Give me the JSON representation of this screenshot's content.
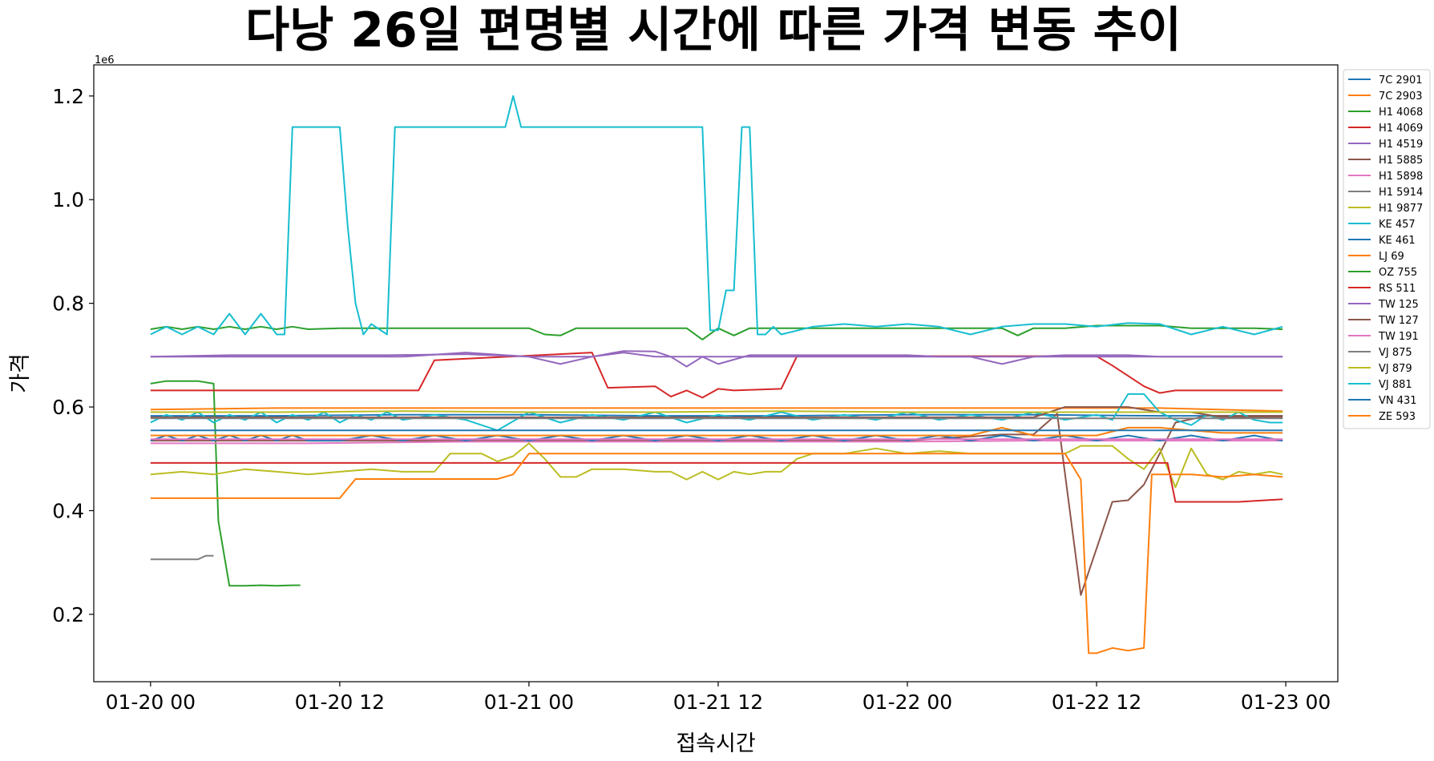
{
  "chart_data": {
    "type": "line",
    "title": "다낭 26일 편명별 시간에 따른 가격 변동 추이",
    "xlabel": "접속시간",
    "ylabel": "가격",
    "y_offset_label": "1e6",
    "x_unit": "hours since 01-20 00",
    "x_ticks": [
      {
        "value": 0,
        "label": "01-20 00"
      },
      {
        "value": 12,
        "label": "01-20 12"
      },
      {
        "value": 24,
        "label": "01-21 00"
      },
      {
        "value": 36,
        "label": "01-21 12"
      },
      {
        "value": 48,
        "label": "01-22 00"
      },
      {
        "value": 60,
        "label": "01-22 12"
      },
      {
        "value": 72,
        "label": "01-23 00"
      }
    ],
    "y_ticks": [
      {
        "value": 0.2,
        "label": "0.2"
      },
      {
        "value": 0.4,
        "label": "0.4"
      },
      {
        "value": 0.6,
        "label": "0.6"
      },
      {
        "value": 0.8,
        "label": "0.8"
      },
      {
        "value": 1.0,
        "label": "1.0"
      },
      {
        "value": 1.2,
        "label": "1.2"
      }
    ],
    "xlim": [
      -3.6,
      75.3
    ],
    "ylim": [
      0.07,
      1.26
    ],
    "grid": false,
    "legend_position": "outside-right",
    "series": [
      {
        "name": "7C 2901",
        "color": "#1f77b4",
        "x": [
          0,
          8,
          16,
          24,
          32,
          40,
          48,
          56,
          64,
          71.8
        ],
        "y": [
          0.583,
          0.583,
          0.585,
          0.585,
          0.583,
          0.583,
          0.585,
          0.585,
          0.583,
          0.583
        ]
      },
      {
        "name": "7C 2903",
        "color": "#ff7f0e",
        "x": [
          0,
          8,
          16,
          24,
          32,
          40,
          48,
          56,
          64,
          71.8
        ],
        "y": [
          0.595,
          0.598,
          0.598,
          0.598,
          0.598,
          0.598,
          0.598,
          0.598,
          0.598,
          0.592
        ]
      },
      {
        "name": "H1 4068",
        "color": "#2ca02c",
        "x": [
          0,
          1,
          3,
          4,
          4.3,
          5,
          6,
          7,
          8,
          9,
          9.5
        ],
        "y": [
          0.645,
          0.65,
          0.65,
          0.645,
          0.38,
          0.255,
          0.255,
          0.256,
          0.255,
          0.256,
          0.256
        ]
      },
      {
        "name": "H1 4069",
        "color": "#d62728",
        "x": [
          0,
          5,
          10,
          15,
          17,
          18,
          28,
          29,
          32,
          33,
          34,
          35,
          36,
          37,
          40,
          41,
          60,
          61,
          62,
          63,
          64,
          65,
          66,
          67,
          71.8
        ],
        "y": [
          0.632,
          0.632,
          0.632,
          0.632,
          0.632,
          0.69,
          0.705,
          0.637,
          0.64,
          0.62,
          0.632,
          0.618,
          0.635,
          0.632,
          0.635,
          0.698,
          0.698,
          0.68,
          0.66,
          0.64,
          0.627,
          0.632,
          0.632,
          0.632,
          0.632
        ]
      },
      {
        "name": "H1 4519",
        "color": "#9467bd",
        "x": [
          0,
          5,
          10,
          15,
          20,
          24,
          26,
          28,
          30,
          32,
          33,
          34,
          35,
          36,
          38,
          40,
          44,
          48,
          50,
          52,
          54,
          56,
          58,
          60,
          62,
          64,
          66,
          68,
          71.8
        ],
        "y": [
          0.697,
          0.7,
          0.7,
          0.7,
          0.702,
          0.697,
          0.683,
          0.697,
          0.708,
          0.707,
          0.697,
          0.678,
          0.697,
          0.683,
          0.7,
          0.7,
          0.7,
          0.7,
          0.697,
          0.697,
          0.683,
          0.697,
          0.7,
          0.7,
          0.7,
          0.697,
          0.697,
          0.697,
          0.697
        ]
      },
      {
        "name": "H1 5885",
        "color": "#8c564b",
        "x": [
          0,
          10,
          20,
          30,
          40,
          48,
          54,
          56,
          57.5,
          59,
          61,
          62,
          63,
          65,
          67,
          69,
          71.8
        ],
        "y": [
          0.535,
          0.535,
          0.535,
          0.535,
          0.535,
          0.535,
          0.547,
          0.547,
          0.587,
          0.237,
          0.417,
          0.42,
          0.45,
          0.57,
          0.583,
          0.583,
          0.583
        ]
      },
      {
        "name": "H1 5898",
        "color": "#e377c2",
        "x": [
          0,
          10,
          20,
          30,
          40,
          48,
          56,
          64,
          71.8
        ],
        "y": [
          0.53,
          0.53,
          0.533,
          0.533,
          0.533,
          0.533,
          0.535,
          0.535,
          0.535
        ]
      },
      {
        "name": "H1 5914",
        "color": "#7f7f7f",
        "x": [
          0,
          3,
          3.5,
          4
        ],
        "y": [
          0.306,
          0.306,
          0.313,
          0.313
        ]
      },
      {
        "name": "H1 9877",
        "color": "#bcbd22",
        "x": [
          0,
          2,
          4,
          6,
          8,
          10,
          12,
          14,
          16,
          18,
          19,
          21,
          22,
          23,
          24,
          25,
          26,
          27,
          28,
          30,
          32,
          33,
          34,
          35,
          36,
          37,
          38,
          39,
          40,
          41,
          42,
          43,
          44,
          46,
          48,
          50,
          52,
          54,
          56,
          58,
          59,
          60,
          61,
          62,
          63,
          64,
          65,
          66,
          67,
          68,
          69,
          70,
          71,
          71.8
        ],
        "y": [
          0.47,
          0.475,
          0.47,
          0.48,
          0.475,
          0.47,
          0.475,
          0.48,
          0.475,
          0.475,
          0.51,
          0.51,
          0.495,
          0.505,
          0.53,
          0.5,
          0.465,
          0.465,
          0.48,
          0.48,
          0.475,
          0.475,
          0.46,
          0.475,
          0.46,
          0.475,
          0.47,
          0.475,
          0.475,
          0.5,
          0.51,
          0.51,
          0.51,
          0.52,
          0.51,
          0.515,
          0.51,
          0.51,
          0.51,
          0.51,
          0.525,
          0.525,
          0.525,
          0.5,
          0.48,
          0.52,
          0.445,
          0.52,
          0.47,
          0.46,
          0.475,
          0.47,
          0.475,
          0.47
        ]
      },
      {
        "name": "KE 457",
        "color": "#17becf",
        "x": [
          0,
          1,
          2,
          3,
          4,
          5,
          6,
          7,
          8,
          9,
          10,
          11,
          12,
          13,
          14,
          15,
          16,
          18,
          20,
          22,
          24,
          26,
          28,
          30,
          32,
          34,
          36,
          38,
          40,
          42,
          44,
          46,
          48,
          50,
          52,
          54,
          56,
          58,
          60,
          61,
          62,
          63,
          64,
          65,
          66,
          67,
          68,
          69,
          70,
          71,
          71.8
        ],
        "y": [
          0.57,
          0.585,
          0.575,
          0.59,
          0.57,
          0.585,
          0.575,
          0.59,
          0.57,
          0.585,
          0.575,
          0.59,
          0.57,
          0.585,
          0.575,
          0.59,
          0.575,
          0.585,
          0.575,
          0.555,
          0.59,
          0.57,
          0.585,
          0.575,
          0.59,
          0.57,
          0.585,
          0.575,
          0.59,
          0.575,
          0.585,
          0.575,
          0.59,
          0.575,
          0.585,
          0.575,
          0.59,
          0.575,
          0.585,
          0.575,
          0.625,
          0.625,
          0.59,
          0.575,
          0.565,
          0.585,
          0.575,
          0.59,
          0.575,
          0.57,
          0.57
        ]
      },
      {
        "name": "KE 461",
        "color": "#1f77b4",
        "x": [
          0,
          1,
          2,
          3,
          4,
          5,
          6,
          7,
          8,
          9,
          10,
          12,
          14,
          16,
          18,
          20,
          22,
          24,
          26,
          28,
          30,
          32,
          34,
          36,
          38,
          40,
          42,
          44,
          46,
          48,
          50,
          52,
          54,
          56,
          58,
          60,
          62,
          64,
          66,
          68,
          70,
          71.8
        ],
        "y": [
          0.535,
          0.545,
          0.535,
          0.545,
          0.535,
          0.545,
          0.535,
          0.545,
          0.535,
          0.545,
          0.535,
          0.535,
          0.545,
          0.535,
          0.545,
          0.535,
          0.545,
          0.535,
          0.545,
          0.535,
          0.545,
          0.535,
          0.545,
          0.535,
          0.545,
          0.535,
          0.545,
          0.535,
          0.545,
          0.535,
          0.545,
          0.535,
          0.545,
          0.535,
          0.545,
          0.535,
          0.545,
          0.535,
          0.545,
          0.535,
          0.545,
          0.535
        ]
      },
      {
        "name": "LJ 69",
        "color": "#ff7f0e",
        "x": [
          0,
          8,
          16,
          24,
          32,
          40,
          48,
          52,
          54,
          56,
          58,
          59,
          60,
          62,
          64,
          66,
          68,
          71.8
        ],
        "y": [
          0.545,
          0.545,
          0.545,
          0.545,
          0.545,
          0.545,
          0.545,
          0.545,
          0.56,
          0.545,
          0.545,
          0.545,
          0.545,
          0.56,
          0.56,
          0.555,
          0.55,
          0.55
        ]
      },
      {
        "name": "OZ 755",
        "color": "#2ca02c",
        "x": [
          0,
          1,
          2,
          3,
          4,
          5,
          6,
          7,
          8,
          9,
          10,
          12,
          14,
          16,
          18,
          20,
          22,
          24,
          25,
          26,
          27,
          28,
          30,
          32,
          34,
          35,
          36,
          37,
          38,
          40,
          42,
          44,
          46,
          48,
          50,
          52,
          54,
          55,
          56,
          58,
          60,
          62,
          64,
          66,
          68,
          70,
          71.8
        ],
        "y": [
          0.75,
          0.755,
          0.75,
          0.755,
          0.75,
          0.755,
          0.75,
          0.755,
          0.75,
          0.755,
          0.75,
          0.752,
          0.752,
          0.752,
          0.752,
          0.752,
          0.752,
          0.752,
          0.74,
          0.738,
          0.752,
          0.752,
          0.752,
          0.752,
          0.752,
          0.73,
          0.752,
          0.738,
          0.752,
          0.752,
          0.752,
          0.752,
          0.752,
          0.752,
          0.752,
          0.752,
          0.752,
          0.738,
          0.752,
          0.752,
          0.757,
          0.757,
          0.757,
          0.752,
          0.752,
          0.752,
          0.75
        ]
      },
      {
        "name": "RS 511",
        "color": "#d62728",
        "x": [
          0,
          8,
          16,
          24,
          32,
          40,
          48,
          56,
          63,
          64.5,
          65,
          67,
          69,
          71.8
        ],
        "y": [
          0.492,
          0.492,
          0.492,
          0.492,
          0.492,
          0.492,
          0.492,
          0.492,
          0.492,
          0.492,
          0.417,
          0.417,
          0.417,
          0.422
        ]
      },
      {
        "name": "TW 125",
        "color": "#9467bd",
        "x": [
          0,
          8,
          16,
          20,
          24,
          28,
          30,
          32,
          36,
          40,
          48,
          56,
          60,
          64,
          68,
          71.8
        ],
        "y": [
          0.697,
          0.697,
          0.697,
          0.705,
          0.697,
          0.697,
          0.705,
          0.697,
          0.697,
          0.697,
          0.697,
          0.697,
          0.697,
          0.697,
          0.697,
          0.697
        ]
      },
      {
        "name": "TW 127",
        "color": "#8c564b",
        "x": [
          0,
          10,
          20,
          30,
          40,
          48,
          52,
          54,
          56,
          58,
          60,
          62,
          64,
          66,
          68,
          70,
          71.8
        ],
        "y": [
          0.58,
          0.58,
          0.58,
          0.58,
          0.58,
          0.58,
          0.58,
          0.58,
          0.58,
          0.6,
          0.6,
          0.6,
          0.59,
          0.59,
          0.58,
          0.58,
          0.58
        ]
      },
      {
        "name": "TW 191",
        "color": "#e377c2",
        "x": [
          0,
          8,
          16,
          24,
          32,
          40,
          48,
          56,
          64,
          71.8
        ],
        "y": [
          0.538,
          0.538,
          0.538,
          0.538,
          0.538,
          0.538,
          0.538,
          0.538,
          0.538,
          0.538
        ]
      },
      {
        "name": "VJ 875",
        "color": "#7f7f7f",
        "x": [
          0,
          8,
          16,
          24,
          32,
          40,
          48,
          56,
          64,
          71.8
        ],
        "y": [
          0.578,
          0.578,
          0.578,
          0.578,
          0.578,
          0.578,
          0.578,
          0.578,
          0.578,
          0.578
        ]
      },
      {
        "name": "VJ 879",
        "color": "#bcbd22",
        "x": [
          0,
          8,
          16,
          24,
          32,
          40,
          48,
          56,
          64,
          71.8
        ],
        "y": [
          0.59,
          0.59,
          0.592,
          0.59,
          0.59,
          0.592,
          0.59,
          0.59,
          0.59,
          0.59
        ]
      },
      {
        "name": "VJ 881",
        "color": "#17becf",
        "x": [
          0,
          1,
          2,
          3,
          4,
          5,
          6,
          7,
          8,
          8.5,
          9,
          10,
          11,
          12,
          12.5,
          13,
          13.5,
          14,
          15,
          15.5,
          16,
          18,
          20,
          22,
          22.5,
          23,
          23.5,
          24,
          26,
          28,
          30,
          32,
          34,
          35,
          35.5,
          36,
          36.5,
          37,
          37.5,
          38,
          38.5,
          39,
          39.5,
          40,
          42,
          44,
          46,
          48,
          50,
          52,
          54,
          56,
          58,
          60,
          62,
          64,
          66,
          68,
          70,
          71.8
        ],
        "y": [
          0.74,
          0.755,
          0.74,
          0.755,
          0.74,
          0.78,
          0.74,
          0.78,
          0.74,
          0.74,
          1.14,
          1.14,
          1.14,
          1.14,
          0.95,
          0.8,
          0.74,
          0.76,
          0.74,
          1.14,
          1.14,
          1.14,
          1.14,
          1.14,
          1.14,
          1.2,
          1.14,
          1.14,
          1.14,
          1.14,
          1.14,
          1.14,
          1.14,
          1.14,
          0.748,
          0.748,
          0.825,
          0.825,
          1.14,
          1.14,
          0.74,
          0.74,
          0.755,
          0.74,
          0.755,
          0.76,
          0.755,
          0.76,
          0.755,
          0.74,
          0.755,
          0.76,
          0.76,
          0.755,
          0.762,
          0.76,
          0.74,
          0.755,
          0.74,
          0.755
        ]
      },
      {
        "name": "VN 431",
        "color": "#1f77b4",
        "x": [
          0,
          8,
          16,
          24,
          32,
          40,
          48,
          56,
          60,
          64,
          68,
          71.8
        ],
        "y": [
          0.555,
          0.555,
          0.555,
          0.555,
          0.555,
          0.555,
          0.555,
          0.555,
          0.555,
          0.555,
          0.555,
          0.555
        ]
      },
      {
        "name": "ZE 593",
        "color": "#ff7f0e",
        "x": [
          0,
          8,
          12,
          13,
          22,
          23,
          24,
          30,
          36,
          40,
          48,
          56,
          58,
          59,
          59.5,
          60,
          61,
          62,
          63,
          63.5,
          64,
          66,
          68,
          70,
          71.8
        ],
        "y": [
          0.424,
          0.424,
          0.424,
          0.461,
          0.461,
          0.47,
          0.51,
          0.51,
          0.51,
          0.51,
          0.51,
          0.51,
          0.51,
          0.46,
          0.125,
          0.125,
          0.135,
          0.13,
          0.135,
          0.47,
          0.47,
          0.47,
          0.465,
          0.47,
          0.465
        ]
      }
    ]
  }
}
